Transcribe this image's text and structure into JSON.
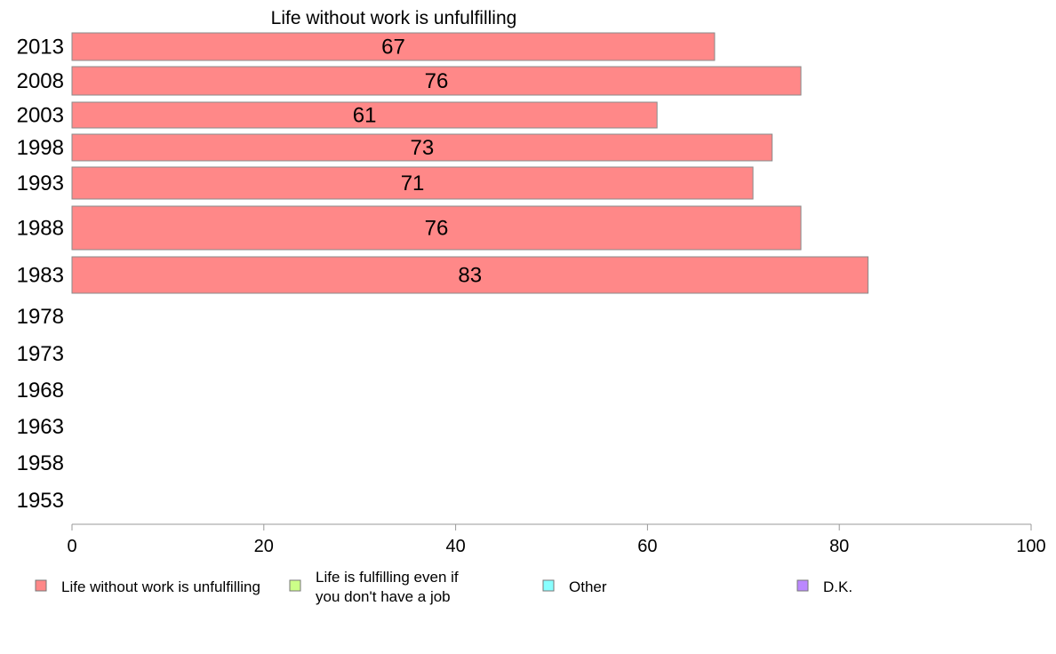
{
  "chart_data": {
    "type": "bar",
    "orientation": "horizontal",
    "title": "Life without work is unfulfilling",
    "categories": [
      "2013",
      "2008",
      "2003",
      "1998",
      "1993",
      "1988",
      "1983",
      "1978",
      "1973",
      "1968",
      "1963",
      "1958",
      "1953"
    ],
    "series": [
      {
        "name": "Life without work is unfulfilling",
        "color": "#ff8888",
        "values": [
          67,
          76,
          61,
          73,
          71,
          76,
          83,
          null,
          null,
          null,
          null,
          null,
          null
        ],
        "data_labels": [
          "67",
          "76",
          "61",
          "73",
          "71",
          "76",
          "83",
          "",
          "",
          "",
          "",
          "",
          ""
        ]
      }
    ],
    "xlim": [
      0,
      100
    ],
    "xticks": [
      0,
      20,
      40,
      60,
      80,
      100
    ],
    "xtick_labels": [
      "0",
      "20",
      "40",
      "60",
      "80",
      "100"
    ],
    "grid": false,
    "legend_position": "bottom",
    "legend": [
      {
        "label_lines": [
          "Life without work is unfulfilling"
        ],
        "color": "#ff8888"
      },
      {
        "label_lines": [
          "Life is fulfilling even if",
          "you don't have a job"
        ],
        "color": "#ccff88"
      },
      {
        "label_lines": [
          "Other"
        ],
        "color": "#88ffff"
      },
      {
        "label_lines": [
          "D.K."
        ],
        "color": "#bb88ff"
      }
    ]
  }
}
